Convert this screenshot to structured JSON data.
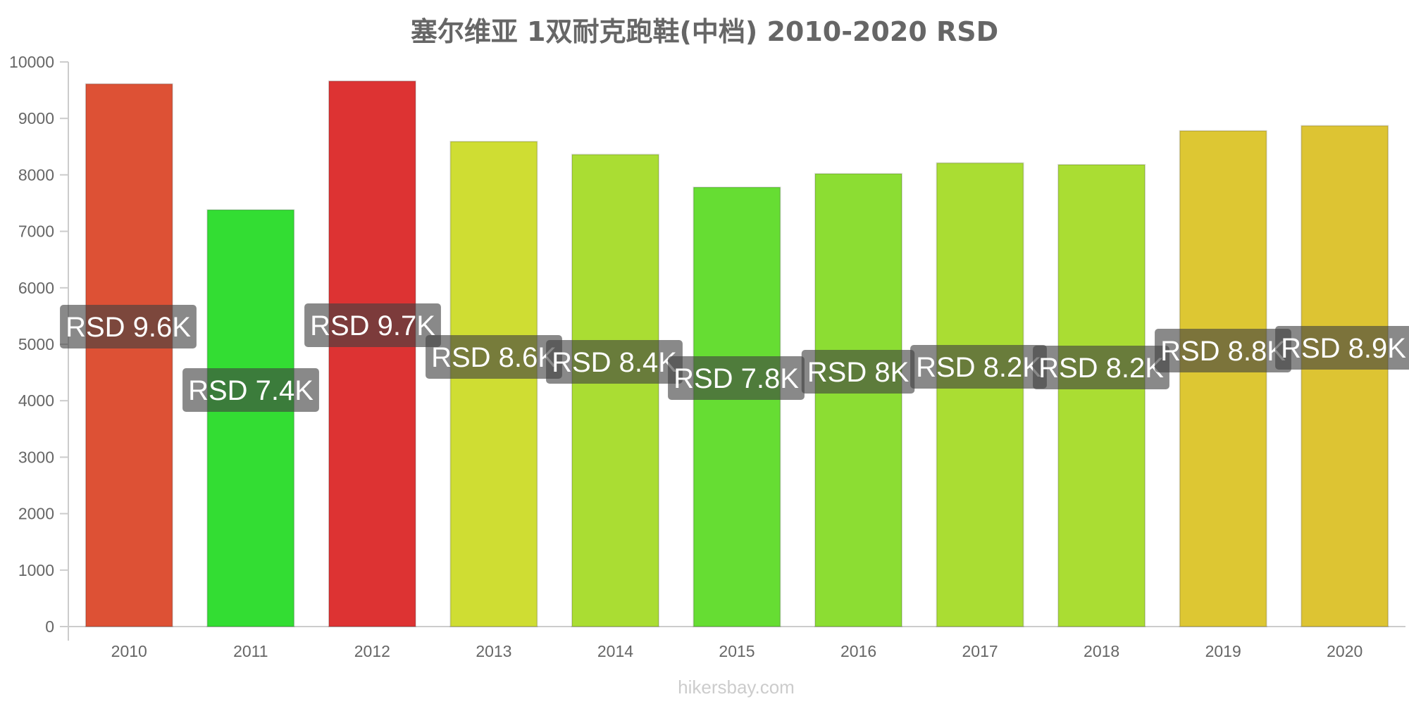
{
  "chart_data": {
    "type": "bar",
    "title": "塞尔维亚 1双耐克跑鞋(中档) 2010-2020 RSD",
    "categories": [
      "2010",
      "2011",
      "2012",
      "2013",
      "2014",
      "2015",
      "2016",
      "2017",
      "2018",
      "2019",
      "2020"
    ],
    "values": [
      9610,
      7380,
      9660,
      8590,
      8360,
      7780,
      8020,
      8210,
      8180,
      8780,
      8870
    ],
    "data_labels": [
      "RSD 9.6K",
      "RSD 7.4K",
      "RSD 9.7K",
      "RSD 8.6K",
      "RSD 8.4K",
      "RSD 7.8K",
      "RSD 8K",
      "RSD 8.2K",
      "RSD 8.2K",
      "RSD 8.8K",
      "RSD 8.9K"
    ],
    "colors": [
      "#dd5135",
      "#33dd33",
      "#dd3333",
      "#cfdd33",
      "#aadd33",
      "#66dd33",
      "#8cdd33",
      "#aadd33",
      "#aadd33",
      "#ddc733",
      "#ddc433"
    ],
    "yticks": [
      "0",
      "1000",
      "2000",
      "3000",
      "4000",
      "5000",
      "6000",
      "7000",
      "8000",
      "9000",
      "10000"
    ],
    "ylim": [
      0,
      10000
    ],
    "xlabel": "",
    "ylabel": "",
    "grid": false,
    "legend": "none"
  },
  "watermark": "hikersbay.com"
}
